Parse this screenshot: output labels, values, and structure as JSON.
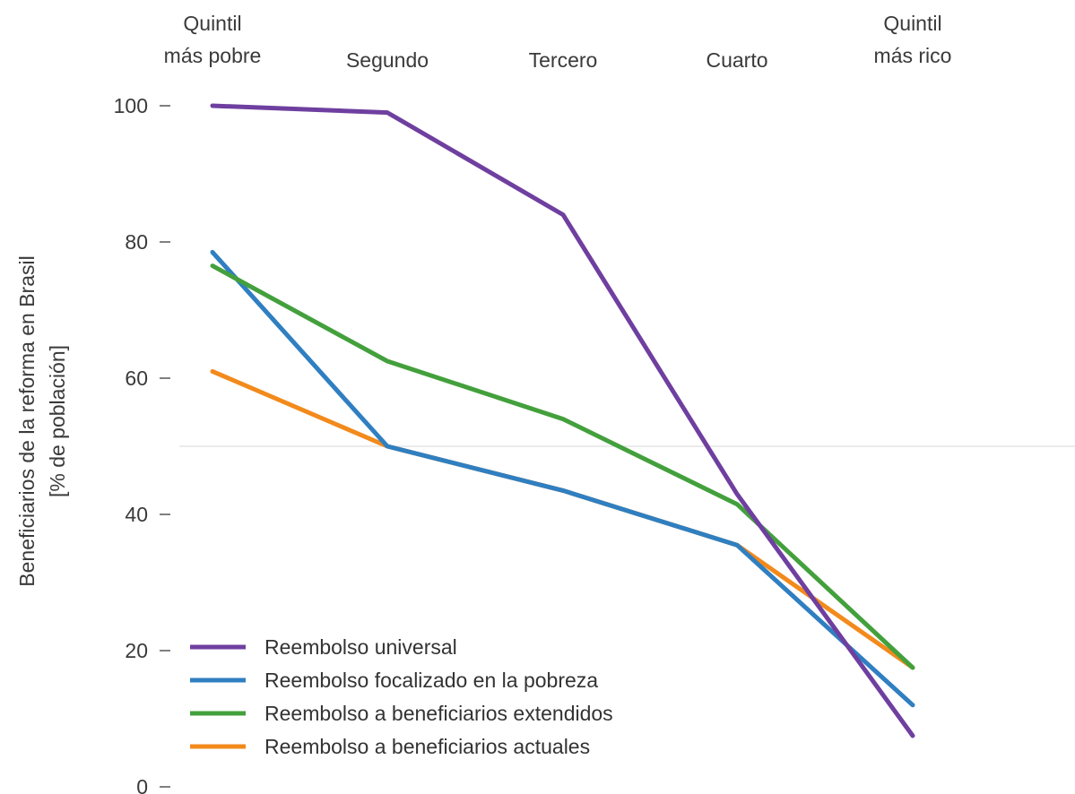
{
  "chart_data": {
    "type": "line",
    "categories": [
      [
        "Quintil",
        "más pobre"
      ],
      [
        "Segundo"
      ],
      [
        "Tercero"
      ],
      [
        "Cuarto"
      ],
      [
        "Quintil",
        "más rico"
      ]
    ],
    "ylabel": [
      "Beneficiarios de la reforma en Brasil",
      "[% de población]"
    ],
    "ylim": [
      0,
      100
    ],
    "yticks": [
      0,
      20,
      40,
      60,
      80,
      100
    ],
    "reference_line": 50,
    "grid": false,
    "legend_position": "bottom-left",
    "series": [
      {
        "name": "Reembolso universal",
        "color": "#6f3fa0",
        "values": [
          100,
          99,
          84,
          43,
          7.5
        ]
      },
      {
        "name": "Reembolso focalizado en la pobreza",
        "color": "#2f7fc1",
        "values": [
          78.5,
          50,
          43.5,
          35.5,
          12
        ]
      },
      {
        "name": "Reembolso a beneficiarios extendidos",
        "color": "#43a03c",
        "values": [
          76.5,
          62.5,
          54,
          41.5,
          17.5
        ]
      },
      {
        "name": "Reembolso a beneficiarios actuales",
        "color": "#f28a1c",
        "values": [
          61,
          50,
          43.5,
          35.5,
          17.5
        ]
      }
    ],
    "draw_order": [
      3,
      1,
      2,
      0
    ]
  }
}
